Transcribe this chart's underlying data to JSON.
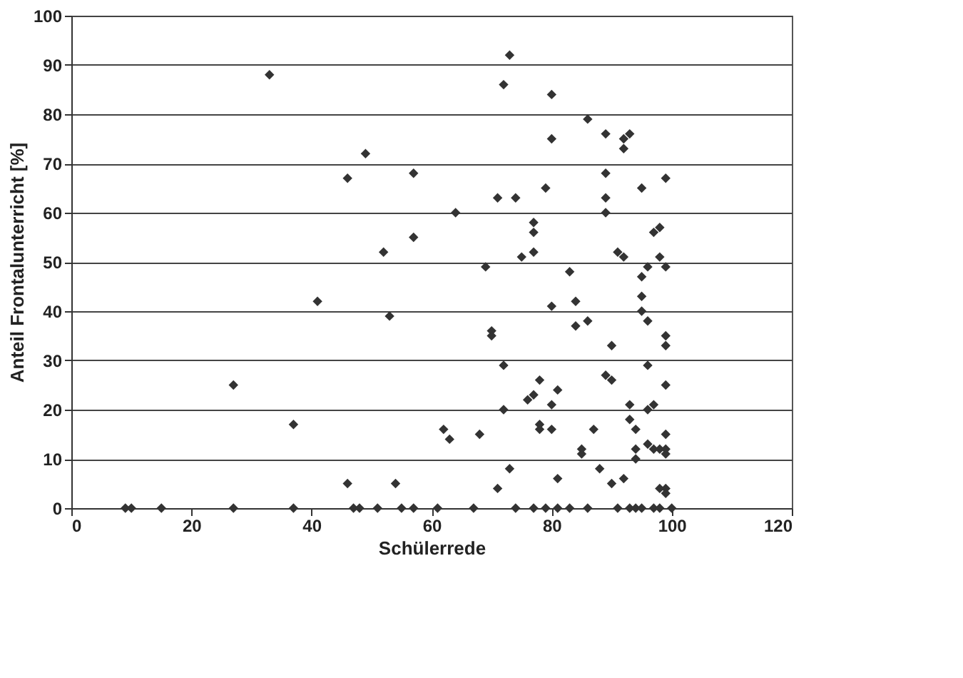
{
  "chart_data": {
    "type": "scatter",
    "xlabel": "Schülerrede",
    "ylabel": "Anteil Frontalunterricht [%]",
    "xlim": [
      0,
      120
    ],
    "xticks": [
      0,
      20,
      40,
      60,
      80,
      100,
      120
    ],
    "ylim": [
      0,
      100
    ],
    "yticks": [
      0,
      10,
      20,
      30,
      40,
      50,
      60,
      70,
      80,
      90,
      100
    ],
    "grid": "y",
    "marker": "diamond",
    "legend": false,
    "series": [
      {
        "color": "#333333",
        "x": [
          9,
          10,
          15,
          27,
          27,
          33,
          37,
          37,
          41,
          46,
          46,
          47,
          48,
          49,
          51,
          52,
          53,
          54,
          55,
          57,
          57,
          57,
          61,
          62,
          63,
          64,
          67,
          68,
          69,
          70,
          70,
          71,
          71,
          72,
          72,
          72,
          73,
          73,
          74,
          74,
          75,
          76,
          77,
          77,
          77,
          77,
          77,
          78,
          78,
          78,
          79,
          79,
          80,
          80,
          80,
          80,
          80,
          81,
          81,
          81,
          83,
          83,
          84,
          84,
          85,
          85,
          86,
          86,
          86,
          87,
          88,
          89,
          89,
          89,
          89,
          89,
          90,
          90,
          90,
          91,
          91,
          92,
          92,
          92,
          92,
          93,
          93,
          93,
          93,
          94,
          94,
          94,
          94,
          95,
          95,
          95,
          95,
          95,
          96,
          96,
          96,
          96,
          96,
          97,
          97,
          97,
          97,
          98,
          98,
          98,
          98,
          98,
          99,
          99,
          99,
          99,
          99,
          99,
          99,
          99,
          99,
          99,
          100
        ],
        "values": [
          0,
          0,
          0,
          0,
          25,
          88,
          17,
          0,
          42,
          67,
          5,
          0,
          0,
          72,
          0,
          52,
          39,
          5,
          0,
          68,
          55,
          0,
          0,
          16,
          14,
          60,
          0,
          15,
          49,
          36,
          35,
          4,
          63,
          86,
          29,
          20,
          92,
          8,
          0,
          63,
          51,
          22,
          23,
          56,
          52,
          58,
          0,
          16,
          26,
          17,
          65,
          0,
          84,
          75,
          41,
          21,
          16,
          6,
          0,
          24,
          0,
          48,
          42,
          37,
          11,
          12,
          0,
          79,
          38,
          16,
          8,
          68,
          60,
          76,
          63,
          27,
          26,
          5,
          33,
          0,
          52,
          75,
          73,
          51,
          6,
          0,
          76,
          21,
          18,
          10,
          0,
          16,
          12,
          65,
          43,
          0,
          40,
          47,
          38,
          13,
          29,
          20,
          49,
          56,
          0,
          21,
          12,
          57,
          51,
          4,
          12,
          0,
          11,
          49,
          67,
          35,
          33,
          25,
          15,
          4,
          3,
          12,
          0
        ]
      }
    ]
  }
}
